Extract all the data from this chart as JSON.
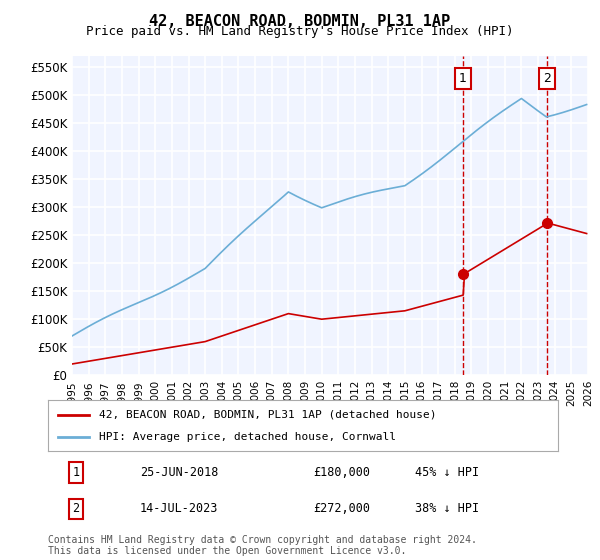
{
  "title": "42, BEACON ROAD, BODMIN, PL31 1AP",
  "subtitle": "Price paid vs. HM Land Registry's House Price Index (HPI)",
  "ylabel_ticks": [
    "£0",
    "£50K",
    "£100K",
    "£150K",
    "£200K",
    "£250K",
    "£300K",
    "£350K",
    "£400K",
    "£450K",
    "£500K",
    "£550K"
  ],
  "ytick_vals": [
    0,
    50000,
    100000,
    150000,
    200000,
    250000,
    300000,
    350000,
    400000,
    450000,
    500000,
    550000
  ],
  "ylim": [
    0,
    570000
  ],
  "hpi_color": "#6baed6",
  "price_color": "#cc0000",
  "marker1_color": "#cc0000",
  "marker2_color": "#cc0000",
  "vline_color": "#cc0000",
  "sale1_date_x": 2018.49,
  "sale1_price": 180000,
  "sale2_date_x": 2023.54,
  "sale2_price": 272000,
  "legend_label_red": "42, BEACON ROAD, BODMIN, PL31 1AP (detached house)",
  "legend_label_blue": "HPI: Average price, detached house, Cornwall",
  "annotation1_label": "1",
  "annotation2_label": "2",
  "table_row1": [
    "1",
    "25-JUN-2018",
    "£180,000",
    "45% ↓ HPI"
  ],
  "table_row2": [
    "2",
    "14-JUL-2023",
    "£272,000",
    "38% ↓ HPI"
  ],
  "footer": "Contains HM Land Registry data © Crown copyright and database right 2024.\nThis data is licensed under the Open Government Licence v3.0.",
  "background_color": "#f0f4ff",
  "plot_bg": "#f0f4ff",
  "grid_color": "#ffffff",
  "xmin": 1995,
  "xmax": 2026
}
